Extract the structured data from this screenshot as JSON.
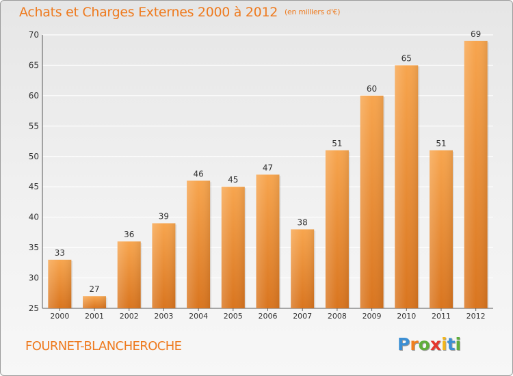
{
  "chart_data": {
    "type": "bar",
    "title": "Achats et Charges Externes 2000 à 2012",
    "subtitle": "(en milliers d'€)",
    "categories": [
      "2000",
      "2001",
      "2002",
      "2003",
      "2004",
      "2005",
      "2006",
      "2007",
      "2008",
      "2009",
      "2010",
      "2011",
      "2012"
    ],
    "values": [
      33,
      27,
      36,
      39,
      46,
      45,
      47,
      38,
      51,
      60,
      65,
      51,
      69
    ],
    "data_labels": [
      "33",
      "27",
      "36",
      "39",
      "46",
      "45",
      "47",
      "38",
      "51",
      "60",
      "65",
      "51",
      "69"
    ],
    "ylim": [
      25,
      70
    ],
    "yticks": [
      25,
      30,
      35,
      40,
      45,
      50,
      55,
      60,
      65,
      70
    ],
    "grid": true,
    "bar_color_top": "#f7a54e",
    "bar_color_bottom": "#d9751f"
  },
  "commune": "FOURNET-BLANCHEROCHE",
  "brand": {
    "letters": [
      "P",
      "r",
      "o",
      "x",
      "i",
      "t",
      "i"
    ],
    "colors": [
      "#3b8fd4",
      "#f07f1e",
      "#5fae3b",
      "#e5352d",
      "#f4b61a",
      "#3b8fd4",
      "#5fae3b"
    ]
  }
}
